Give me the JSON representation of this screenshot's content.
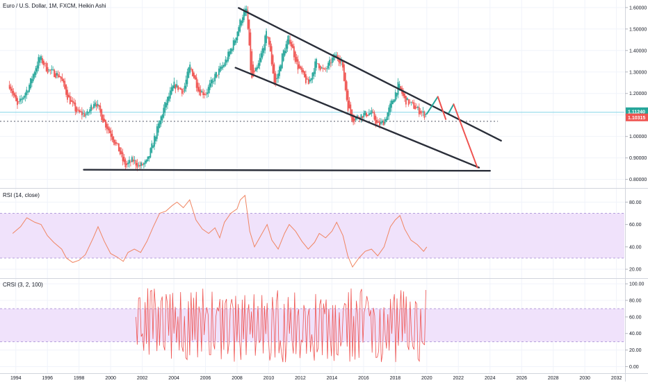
{
  "title": "Euro / U.S. Dollar, 1M, FXCM, Heikin Ashi",
  "price_badges": [
    {
      "label": "1.11240",
      "color": "#26a69a"
    },
    {
      "label": "1.10315",
      "color": "#ef5350"
    }
  ],
  "rsi_title": "RSI (14, close)",
  "crsi_title": "CRSI (3, 2, 100)",
  "colors": {
    "up": "#26a69a",
    "down": "#ef5350",
    "rsi_line": "#f08562",
    "band_fill": "#f0e2fb",
    "trendline": "#2a2e39",
    "current_price_line": "#81d4e8",
    "dotted_line": "#9598a1"
  },
  "chart_data": [
    {
      "type": "candlestick",
      "title": "Euro / U.S. Dollar, 1M, FXCM, Heikin Ashi",
      "x_ticks": [
        1994,
        1996,
        1998,
        2000,
        2002,
        2004,
        2006,
        2008,
        2010,
        2012,
        2014,
        2016,
        2018,
        2020,
        2022,
        2024,
        2026,
        2028,
        2030,
        2032
      ],
      "xlim": [
        1993.0,
        2032.5
      ],
      "y_ticks": [
        "0.80000",
        "0.90000",
        "1.00000",
        "1.10000",
        "1.20000",
        "1.30000",
        "1.40000",
        "1.50000",
        "1.60000"
      ],
      "ylim": [
        0.76,
        1.635
      ],
      "price_anchors": [
        [
          1993.6,
          1.24
        ],
        [
          1994.1,
          1.14
        ],
        [
          1994.8,
          1.23
        ],
        [
          1995.5,
          1.37
        ],
        [
          1996.0,
          1.31
        ],
        [
          1996.8,
          1.28
        ],
        [
          1997.3,
          1.18
        ],
        [
          1997.9,
          1.11
        ],
        [
          1998.5,
          1.1
        ],
        [
          1999.0,
          1.17
        ],
        [
          1999.5,
          1.08
        ],
        [
          2000.0,
          1.01
        ],
        [
          2000.5,
          0.94
        ],
        [
          2000.9,
          0.86
        ],
        [
          2001.4,
          0.89
        ],
        [
          2001.8,
          0.86
        ],
        [
          2002.3,
          0.88
        ],
        [
          2002.8,
          1.0
        ],
        [
          2003.4,
          1.14
        ],
        [
          2004.0,
          1.24
        ],
        [
          2004.6,
          1.21
        ],
        [
          2005.0,
          1.33
        ],
        [
          2005.6,
          1.21
        ],
        [
          2006.0,
          1.2
        ],
        [
          2006.6,
          1.28
        ],
        [
          2007.2,
          1.34
        ],
        [
          2007.8,
          1.44
        ],
        [
          2008.3,
          1.56
        ],
        [
          2008.6,
          1.59
        ],
        [
          2008.9,
          1.26
        ],
        [
          2009.3,
          1.32
        ],
        [
          2009.9,
          1.49
        ],
        [
          2010.4,
          1.23
        ],
        [
          2010.9,
          1.39
        ],
        [
          2011.3,
          1.46
        ],
        [
          2011.8,
          1.33
        ],
        [
          2012.5,
          1.24
        ],
        [
          2013.0,
          1.35
        ],
        [
          2013.5,
          1.3
        ],
        [
          2014.2,
          1.38
        ],
        [
          2014.6,
          1.35
        ],
        [
          2015.0,
          1.14
        ],
        [
          2015.3,
          1.08
        ],
        [
          2015.9,
          1.1
        ],
        [
          2016.5,
          1.11
        ],
        [
          2016.9,
          1.05
        ],
        [
          2017.3,
          1.07
        ],
        [
          2017.9,
          1.18
        ],
        [
          2018.2,
          1.24
        ],
        [
          2018.6,
          1.17
        ],
        [
          2019.0,
          1.15
        ],
        [
          2019.5,
          1.12
        ],
        [
          2019.9,
          1.1
        ],
        [
          2020.0,
          1.11
        ]
      ],
      "price_lines": {
        "current": 1.1124,
        "dotted": 1.0705
      },
      "drawings": [
        {
          "kind": "trendline",
          "from": [
            2008.1,
            1.598
          ],
          "to": [
            2024.7,
            0.98
          ]
        },
        {
          "kind": "trendline",
          "from": [
            2007.9,
            1.32
          ],
          "to": [
            2023.3,
            0.855
          ]
        },
        {
          "kind": "trendline",
          "from": [
            1998.3,
            0.845
          ],
          "to": [
            2024.0,
            0.84
          ]
        },
        {
          "kind": "projection",
          "color": "up",
          "from": [
            2020.0,
            1.105
          ],
          "to": [
            2020.7,
            1.185
          ]
        },
        {
          "kind": "projection",
          "color": "down",
          "from": [
            2020.7,
            1.185
          ],
          "to": [
            2021.2,
            1.08
          ]
        },
        {
          "kind": "projection",
          "color": "up",
          "from": [
            2021.4,
            1.11
          ],
          "to": [
            2021.7,
            1.15
          ]
        },
        {
          "kind": "projection",
          "color": "down",
          "from": [
            2021.7,
            1.15
          ],
          "to": [
            2023.2,
            0.855
          ]
        }
      ]
    },
    {
      "type": "line",
      "title": "RSI (14, close)",
      "y_ticks": [
        "20.00",
        "40.00",
        "60.00",
        "80.00"
      ],
      "ylim": [
        12,
        92
      ],
      "band": [
        30,
        70
      ],
      "points": [
        [
          1993.8,
          52
        ],
        [
          1994.3,
          58
        ],
        [
          1994.7,
          66
        ],
        [
          1995.2,
          62
        ],
        [
          1995.6,
          60
        ],
        [
          1996.0,
          50
        ],
        [
          1996.4,
          44
        ],
        [
          1996.9,
          38
        ],
        [
          1997.2,
          30
        ],
        [
          1997.6,
          26
        ],
        [
          1998.0,
          28
        ],
        [
          1998.4,
          33
        ],
        [
          1998.9,
          48
        ],
        [
          1999.2,
          58
        ],
        [
          1999.6,
          45
        ],
        [
          2000.0,
          34
        ],
        [
          2000.4,
          31
        ],
        [
          2000.8,
          27
        ],
        [
          2001.1,
          35
        ],
        [
          2001.5,
          38
        ],
        [
          2001.9,
          35
        ],
        [
          2002.3,
          45
        ],
        [
          2002.7,
          58
        ],
        [
          2003.1,
          70
        ],
        [
          2003.5,
          72
        ],
        [
          2003.9,
          77
        ],
        [
          2004.2,
          80
        ],
        [
          2004.6,
          75
        ],
        [
          2005.0,
          82
        ],
        [
          2005.4,
          64
        ],
        [
          2005.8,
          56
        ],
        [
          2006.2,
          52
        ],
        [
          2006.6,
          57
        ],
        [
          2006.9,
          48
        ],
        [
          2007.2,
          62
        ],
        [
          2007.6,
          70
        ],
        [
          2008.0,
          74
        ],
        [
          2008.2,
          82
        ],
        [
          2008.5,
          86
        ],
        [
          2008.8,
          54
        ],
        [
          2009.1,
          40
        ],
        [
          2009.5,
          50
        ],
        [
          2009.9,
          60
        ],
        [
          2010.2,
          46
        ],
        [
          2010.6,
          38
        ],
        [
          2011.0,
          52
        ],
        [
          2011.3,
          60
        ],
        [
          2011.7,
          54
        ],
        [
          2012.1,
          45
        ],
        [
          2012.5,
          38
        ],
        [
          2012.9,
          44
        ],
        [
          2013.2,
          52
        ],
        [
          2013.6,
          48
        ],
        [
          2014.0,
          54
        ],
        [
          2014.3,
          62
        ],
        [
          2014.7,
          50
        ],
        [
          2015.0,
          32
        ],
        [
          2015.3,
          22
        ],
        [
          2015.7,
          30
        ],
        [
          2016.1,
          36
        ],
        [
          2016.5,
          38
        ],
        [
          2016.9,
          32
        ],
        [
          2017.3,
          40
        ],
        [
          2017.7,
          58
        ],
        [
          2018.0,
          64
        ],
        [
          2018.3,
          68
        ],
        [
          2018.6,
          56
        ],
        [
          2019.0,
          46
        ],
        [
          2019.4,
          42
        ],
        [
          2019.8,
          36
        ],
        [
          2020.0,
          40
        ]
      ]
    },
    {
      "type": "line",
      "title": "CRSI (3, 2, 100)",
      "y_ticks": [
        "0.00",
        "20.00",
        "40.00",
        "60.00",
        "80.00",
        "100.00"
      ],
      "ylim": [
        -8,
        106
      ],
      "band": [
        30,
        70
      ],
      "x_start": 2001.6,
      "x_end": 2020.0
    }
  ]
}
